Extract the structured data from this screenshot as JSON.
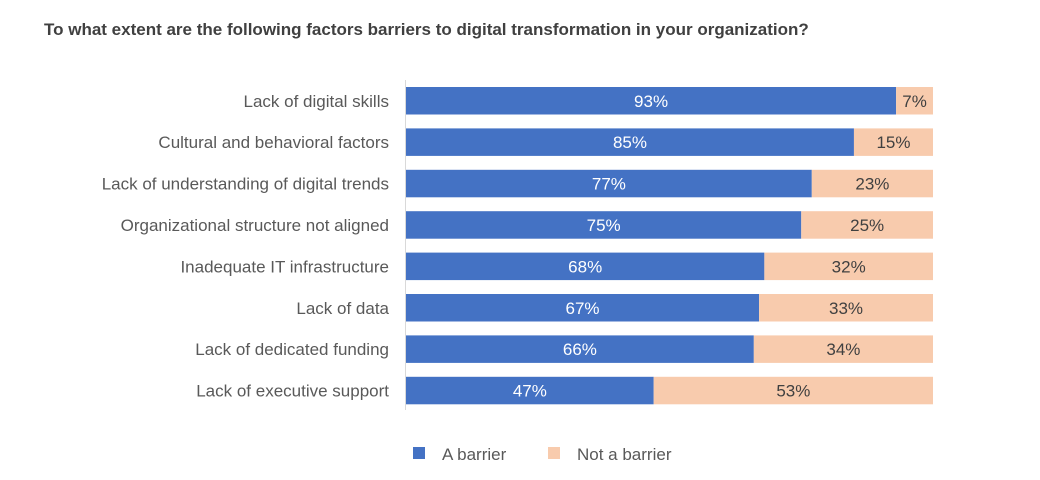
{
  "chart_data": {
    "type": "bar",
    "orientation": "horizontal",
    "stacked": "100%",
    "title": "To what extent are the following factors barriers to digital transformation in your organization?",
    "categories": [
      "Lack of digital skills",
      "Cultural and behavioral factors",
      "Lack of understanding of digital trends",
      "Organizational structure not aligned",
      "Inadequate IT infrastructure",
      "Lack of data",
      "Lack of dedicated funding",
      "Lack of executive support"
    ],
    "series": [
      {
        "name": "A barrier",
        "values": [
          93,
          85,
          77,
          75,
          68,
          67,
          66,
          47
        ],
        "color": "#4472C4",
        "label_color": "#FFFFFF"
      },
      {
        "name": "Not a barrier",
        "values": [
          7,
          15,
          23,
          25,
          32,
          33,
          34,
          53
        ],
        "color": "#F8CBAD",
        "label_color": "#404040"
      }
    ],
    "value_suffix": "%",
    "xlim": [
      0,
      100
    ],
    "grid": false,
    "legend": "bottom"
  }
}
